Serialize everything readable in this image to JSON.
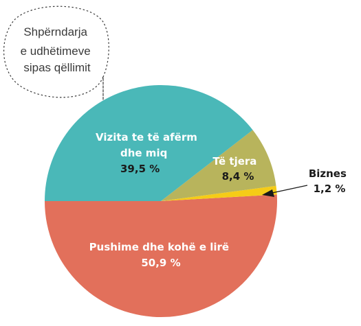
{
  "chart_data": {
    "type": "pie",
    "title_lines": [
      "Shpërndarja",
      "e udhëtimeve",
      "sipas qëllimit"
    ],
    "slices": [
      {
        "label_lines": [
          "Pushime dhe kohë e lirë"
        ],
        "value": 50.9,
        "value_label": "50,9 %",
        "color": "#e2705b",
        "label_color": "#ffffff"
      },
      {
        "label_lines": [
          "Vizita te të afërm",
          "dhe miq"
        ],
        "value": 39.5,
        "value_label": "39,5 %",
        "color": "#4ab8b8",
        "label_color": "#ffffff"
      },
      {
        "label_lines": [
          "Të tjera"
        ],
        "value": 8.4,
        "value_label": "8,4 %",
        "color": "#b8b45c",
        "label_color": "#ffffff"
      },
      {
        "label_lines": [
          "Biznes"
        ],
        "value": 1.2,
        "value_label": "1,2 %",
        "color": "#f5cc17",
        "label_color": "#1a1a1a"
      }
    ]
  }
}
